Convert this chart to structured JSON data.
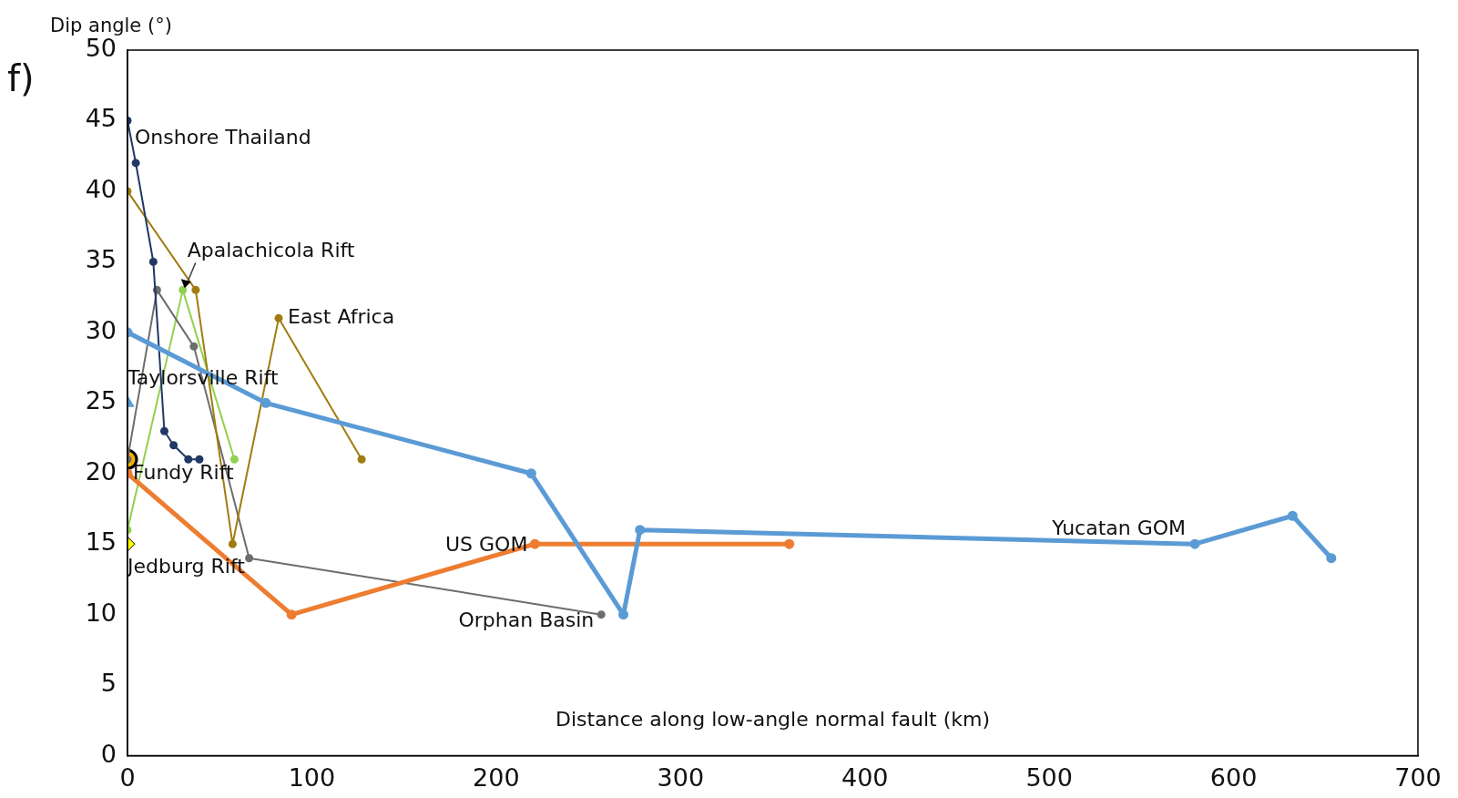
{
  "chart_data": {
    "type": "line",
    "title": "f)",
    "ylabel": "Dip angle (°)",
    "xlabel": "Distance along low-angle normal fault (km)",
    "xlim": [
      0,
      700
    ],
    "xticks": [
      0,
      100,
      200,
      300,
      400,
      500,
      600,
      700
    ],
    "ylim": [
      0,
      50
    ],
    "yticks": [
      0,
      5,
      10,
      15,
      20,
      25,
      30,
      35,
      40,
      45,
      50
    ],
    "grid": false,
    "legend": false,
    "marker": "circle",
    "series": [
      {
        "name": "Yucatan GOM",
        "color": "#5b9bd5",
        "x": [
          0,
          75,
          219,
          269,
          278,
          579,
          632,
          653
        ],
        "values": [
          30,
          25,
          20,
          10,
          16,
          15,
          17,
          14
        ]
      },
      {
        "name": "US GOM",
        "color": "#ed7d31",
        "x": [
          0,
          89,
          221,
          359
        ],
        "values": [
          20,
          10,
          15,
          15
        ]
      },
      {
        "name": "Onshore Thailand",
        "color": "#203864",
        "x": [
          0,
          4.5,
          14,
          20,
          25,
          33,
          39
        ],
        "values": [
          45,
          42,
          35,
          23,
          22,
          21,
          21
        ]
      },
      {
        "name": "East Africa",
        "color": "#a07c10",
        "x": [
          0,
          37,
          57,
          82,
          127
        ],
        "values": [
          40,
          33,
          15,
          31,
          21
        ]
      },
      {
        "name": "Orphan Basin",
        "color": "#6d6d6d",
        "x": [
          0,
          16,
          36,
          66,
          257
        ],
        "values": [
          21,
          33,
          29,
          14,
          10
        ]
      },
      {
        "name": "Apalachicola Rift",
        "color": "#92d050",
        "x": [
          0,
          30,
          58
        ],
        "values": [
          16,
          33,
          21
        ]
      },
      {
        "name": "Taylorsville Rift",
        "type": "scatter",
        "marker": "triangle",
        "color": "#5b9bd5",
        "x": [
          0
        ],
        "values": [
          25
        ]
      },
      {
        "name": "Fundy Rift",
        "type": "scatter",
        "marker": "circle",
        "color": "#f0b400",
        "x": [
          0
        ],
        "values": [
          21
        ]
      },
      {
        "name": "Jedburg Rift",
        "type": "scatter",
        "marker": "diamond",
        "color": "#ffff00",
        "x": [
          0
        ],
        "values": [
          15
        ]
      }
    ]
  }
}
